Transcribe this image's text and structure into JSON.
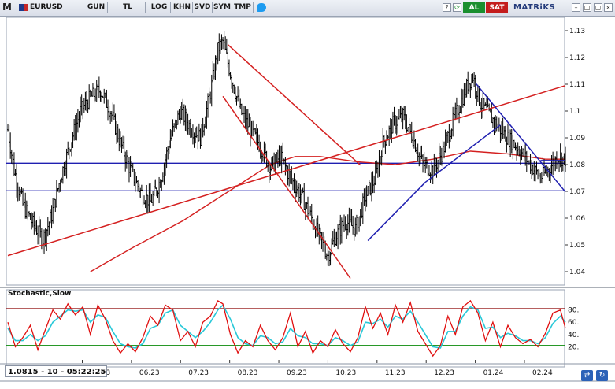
{
  "toolbar": {
    "logo": "M",
    "symbol": "EURUSD",
    "buttons": [
      "GUN",
      "TL",
      "LOG",
      "KHN",
      "SVD",
      "SYM",
      "TMP"
    ],
    "buy_label": "AL",
    "sell_label": "SAT",
    "brand": "MATRiKS",
    "refresh_glyph": "⟳"
  },
  "status_readout": "1.0815 - 10 - 05:22:25",
  "stochastic_title": "Stochastic,Slow",
  "colors": {
    "price": "#000000",
    "channel": "#d42020",
    "support": "#1f1fb0",
    "ma": "#d42020",
    "stoch_k": "#e01010",
    "stoch_d": "#28c8d8",
    "upper_band": "#8b0000",
    "lower_band": "#0a8a0a"
  },
  "chart_data": [
    {
      "type": "candlestick",
      "title": "",
      "y_ticks": [
        1.04,
        1.05,
        1.06,
        1.07,
        1.08,
        1.09,
        1.1,
        1.11,
        1.12,
        1.13
      ],
      "ylim": [
        1.035,
        1.135
      ],
      "x_ticks": [
        "05.23",
        "06.23",
        "07.23",
        "08.23",
        "09.23",
        "10.23",
        "11.23",
        "12.23",
        "01.24",
        "02.24"
      ],
      "x_tick_partial_first": "3",
      "close_path": [
        [
          0,
          1.093
        ],
        [
          5,
          1.078
        ],
        [
          12,
          1.065
        ],
        [
          20,
          1.058
        ],
        [
          28,
          1.052
        ],
        [
          35,
          1.061
        ],
        [
          42,
          1.075
        ],
        [
          50,
          1.088
        ],
        [
          58,
          1.1
        ],
        [
          66,
          1.105
        ],
        [
          74,
          1.108
        ],
        [
          82,
          1.1
        ],
        [
          90,
          1.088
        ],
        [
          98,
          1.078
        ],
        [
          106,
          1.07
        ],
        [
          114,
          1.066
        ],
        [
          122,
          1.074
        ],
        [
          130,
          1.09
        ],
        [
          138,
          1.1
        ],
        [
          146,
          1.094
        ],
        [
          154,
          1.09
        ],
        [
          162,
          1.107
        ],
        [
          168,
          1.123
        ],
        [
          172,
          1.126
        ],
        [
          178,
          1.114
        ],
        [
          186,
          1.1
        ],
        [
          194,
          1.093
        ],
        [
          202,
          1.087
        ],
        [
          210,
          1.079
        ],
        [
          218,
          1.083
        ],
        [
          226,
          1.075
        ],
        [
          234,
          1.069
        ],
        [
          242,
          1.061
        ],
        [
          250,
          1.052
        ],
        [
          256,
          1.046
        ],
        [
          262,
          1.053
        ],
        [
          270,
          1.059
        ],
        [
          278,
          1.056
        ],
        [
          286,
          1.068
        ],
        [
          294,
          1.075
        ],
        [
          300,
          1.088
        ],
        [
          308,
          1.095
        ],
        [
          316,
          1.098
        ],
        [
          324,
          1.09
        ],
        [
          332,
          1.08
        ],
        [
          340,
          1.078
        ],
        [
          348,
          1.085
        ],
        [
          356,
          1.096
        ],
        [
          362,
          1.103
        ],
        [
          368,
          1.11
        ],
        [
          372,
          1.113
        ],
        [
          378,
          1.103
        ],
        [
          386,
          1.098
        ],
        [
          394,
          1.093
        ],
        [
          402,
          1.089
        ],
        [
          410,
          1.085
        ],
        [
          418,
          1.08
        ],
        [
          426,
          1.075
        ],
        [
          432,
          1.078
        ],
        [
          440,
          1.083
        ],
        [
          446,
          1.082
        ]
      ],
      "support_levels": [
        1.0805,
        1.0702
      ],
      "trendlines": [
        {
          "color": "channel",
          "from": [
            0,
            1.046
          ],
          "to": [
            446,
            1.1095
          ]
        },
        {
          "color": "channel",
          "from": [
            176,
            1.1248
          ],
          "to": [
            282,
            1.0798
          ]
        },
        {
          "color": "channel",
          "from": [
            172,
            1.1055
          ],
          "to": [
            274,
            1.0375
          ]
        },
        {
          "color": "support",
          "from": [
            288,
            1.0516
          ],
          "to": [
            334,
            1.0734
          ]
        },
        {
          "color": "support",
          "from": [
            334,
            1.0734
          ],
          "to": [
            394,
            1.0948
          ]
        },
        {
          "color": "support",
          "from": [
            374,
            1.1105
          ],
          "to": [
            446,
            1.0698
          ]
        },
        {
          "color": "support",
          "from": [
            426,
            1.0815
          ],
          "to": [
            446,
            1.0815
          ]
        }
      ],
      "moving_average": [
        [
          66,
          1.04
        ],
        [
          100,
          1.049
        ],
        [
          140,
          1.059
        ],
        [
          180,
          1.071
        ],
        [
          210,
          1.08
        ],
        [
          230,
          1.083
        ],
        [
          250,
          1.083
        ],
        [
          280,
          1.081
        ],
        [
          310,
          1.08
        ],
        [
          340,
          1.082
        ],
        [
          370,
          1.085
        ],
        [
          400,
          1.084
        ],
        [
          430,
          1.082
        ],
        [
          446,
          1.082
        ]
      ]
    },
    {
      "type": "line",
      "title": "Stochastic,Slow",
      "y_ticks": [
        20,
        40,
        60,
        80
      ],
      "ylim": [
        0,
        100
      ],
      "bands": [
        82,
        22
      ],
      "k_path": [
        [
          0,
          60
        ],
        [
          6,
          20
        ],
        [
          12,
          35
        ],
        [
          18,
          55
        ],
        [
          24,
          15
        ],
        [
          30,
          48
        ],
        [
          36,
          80
        ],
        [
          42,
          65
        ],
        [
          48,
          90
        ],
        [
          54,
          72
        ],
        [
          60,
          85
        ],
        [
          66,
          40
        ],
        [
          72,
          88
        ],
        [
          78,
          65
        ],
        [
          84,
          30
        ],
        [
          90,
          10
        ],
        [
          96,
          25
        ],
        [
          102,
          12
        ],
        [
          108,
          35
        ],
        [
          114,
          70
        ],
        [
          120,
          55
        ],
        [
          126,
          88
        ],
        [
          132,
          80
        ],
        [
          138,
          30
        ],
        [
          144,
          45
        ],
        [
          150,
          20
        ],
        [
          156,
          60
        ],
        [
          162,
          70
        ],
        [
          168,
          95
        ],
        [
          172,
          90
        ],
        [
          178,
          40
        ],
        [
          184,
          10
        ],
        [
          190,
          30
        ],
        [
          196,
          20
        ],
        [
          202,
          55
        ],
        [
          208,
          30
        ],
        [
          214,
          15
        ],
        [
          220,
          35
        ],
        [
          226,
          75
        ],
        [
          232,
          20
        ],
        [
          238,
          45
        ],
        [
          244,
          10
        ],
        [
          250,
          30
        ],
        [
          256,
          20
        ],
        [
          262,
          48
        ],
        [
          268,
          25
        ],
        [
          274,
          12
        ],
        [
          280,
          35
        ],
        [
          286,
          85
        ],
        [
          292,
          50
        ],
        [
          298,
          75
        ],
        [
          304,
          40
        ],
        [
          310,
          88
        ],
        [
          316,
          60
        ],
        [
          322,
          92
        ],
        [
          328,
          45
        ],
        [
          334,
          25
        ],
        [
          340,
          5
        ],
        [
          346,
          22
        ],
        [
          352,
          70
        ],
        [
          358,
          40
        ],
        [
          364,
          85
        ],
        [
          370,
          95
        ],
        [
          376,
          75
        ],
        [
          382,
          30
        ],
        [
          388,
          60
        ],
        [
          394,
          20
        ],
        [
          400,
          55
        ],
        [
          406,
          35
        ],
        [
          412,
          25
        ],
        [
          418,
          32
        ],
        [
          424,
          20
        ],
        [
          430,
          42
        ],
        [
          436,
          75
        ],
        [
          442,
          80
        ],
        [
          446,
          50
        ]
      ],
      "d_path": [
        [
          0,
          50
        ],
        [
          6,
          30
        ],
        [
          12,
          30
        ],
        [
          18,
          40
        ],
        [
          24,
          30
        ],
        [
          30,
          38
        ],
        [
          36,
          60
        ],
        [
          42,
          70
        ],
        [
          48,
          80
        ],
        [
          54,
          78
        ],
        [
          60,
          80
        ],
        [
          66,
          60
        ],
        [
          72,
          72
        ],
        [
          78,
          68
        ],
        [
          84,
          45
        ],
        [
          90,
          25
        ],
        [
          96,
          20
        ],
        [
          102,
          18
        ],
        [
          108,
          25
        ],
        [
          114,
          50
        ],
        [
          120,
          55
        ],
        [
          126,
          75
        ],
        [
          132,
          80
        ],
        [
          138,
          55
        ],
        [
          144,
          45
        ],
        [
          150,
          35
        ],
        [
          156,
          45
        ],
        [
          162,
          60
        ],
        [
          168,
          80
        ],
        [
          172,
          88
        ],
        [
          178,
          65
        ],
        [
          184,
          35
        ],
        [
          190,
          25
        ],
        [
          196,
          22
        ],
        [
          202,
          38
        ],
        [
          208,
          35
        ],
        [
          214,
          25
        ],
        [
          220,
          28
        ],
        [
          226,
          50
        ],
        [
          232,
          38
        ],
        [
          238,
          35
        ],
        [
          244,
          25
        ],
        [
          250,
          25
        ],
        [
          256,
          22
        ],
        [
          262,
          35
        ],
        [
          268,
          30
        ],
        [
          274,
          22
        ],
        [
          280,
          28
        ],
        [
          286,
          60
        ],
        [
          292,
          58
        ],
        [
          298,
          65
        ],
        [
          304,
          52
        ],
        [
          310,
          70
        ],
        [
          316,
          65
        ],
        [
          322,
          78
        ],
        [
          328,
          60
        ],
        [
          334,
          40
        ],
        [
          340,
          20
        ],
        [
          346,
          18
        ],
        [
          352,
          45
        ],
        [
          358,
          45
        ],
        [
          364,
          70
        ],
        [
          370,
          85
        ],
        [
          376,
          80
        ],
        [
          382,
          50
        ],
        [
          388,
          52
        ],
        [
          394,
          35
        ],
        [
          400,
          42
        ],
        [
          406,
          38
        ],
        [
          412,
          30
        ],
        [
          418,
          30
        ],
        [
          424,
          25
        ],
        [
          430,
          35
        ],
        [
          436,
          58
        ],
        [
          442,
          70
        ],
        [
          446,
          60
        ]
      ]
    }
  ]
}
